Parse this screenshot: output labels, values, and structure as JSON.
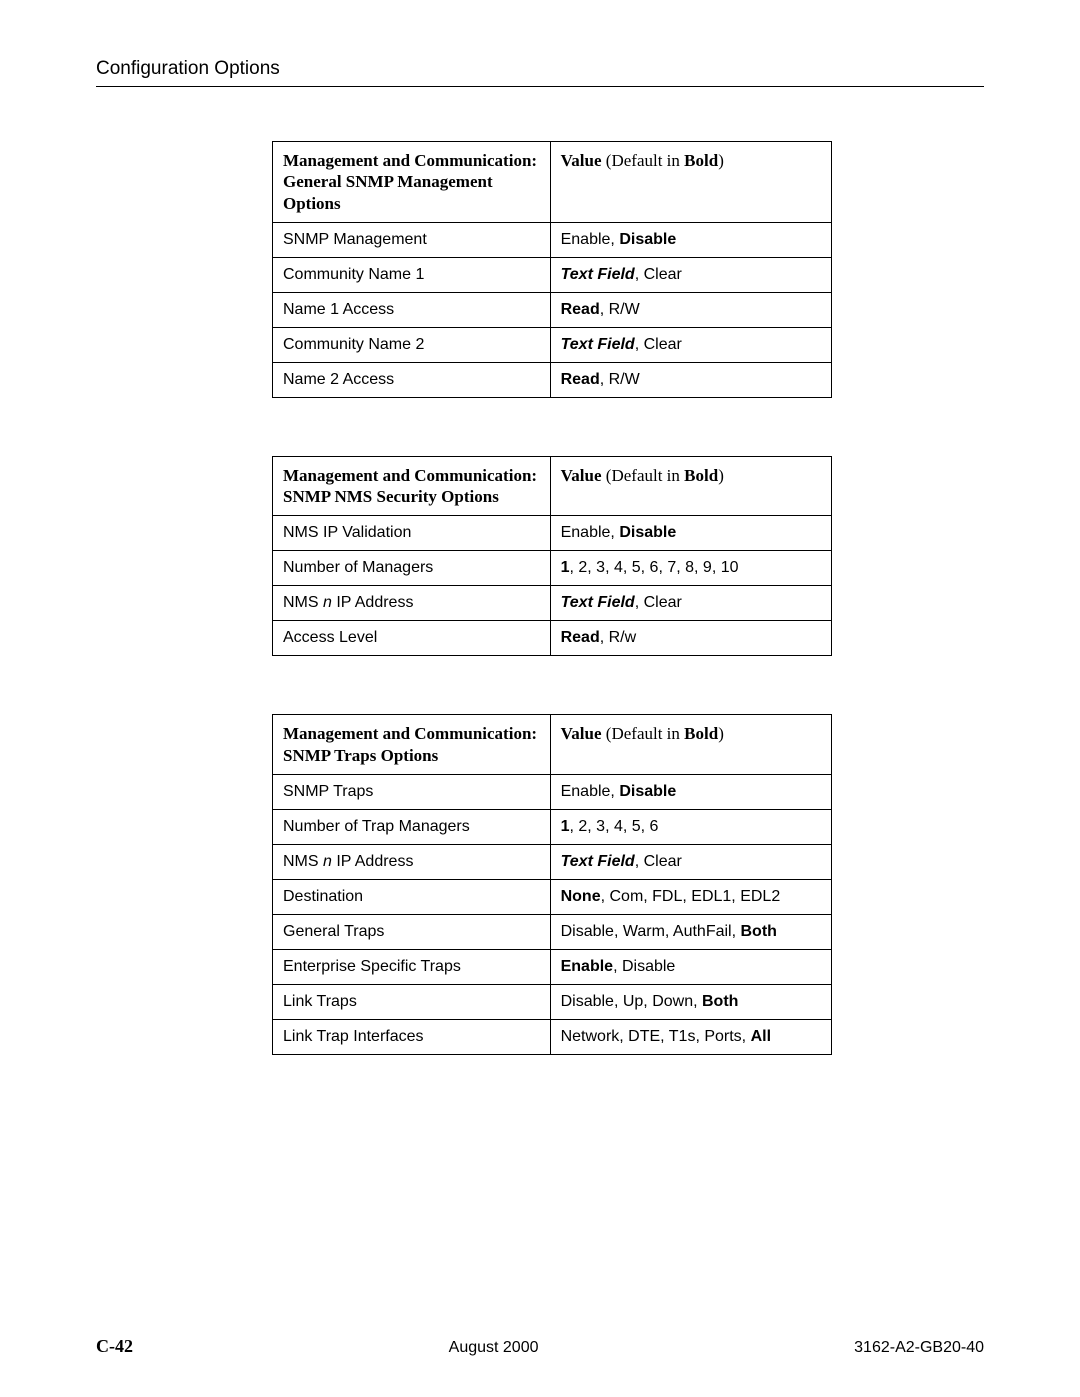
{
  "page": {
    "section_title": "Configuration Options",
    "page_number": "C-42",
    "date": "August 2000",
    "doc_id": "3162-A2-GB20-40"
  },
  "tables": {
    "t1": {
      "col1_header_line1": "Management and Communication:",
      "col1_header_line2": "General SNMP Management Options",
      "col2_header_prefix": "Value",
      "col2_header_paren_pre": " (Default in ",
      "col2_header_bold": "Bold",
      "col2_header_paren_post": ")",
      "rows": [
        {
          "name": "SNMP Management",
          "val_pre": "Enable, ",
          "val_bold": "Disable",
          "val_post": ""
        },
        {
          "name": "Community Name 1",
          "val_bi": "Text Field",
          "val_post": ", Clear"
        },
        {
          "name": "Name 1 Access",
          "val_bold": "Read",
          "val_post": ", R/W"
        },
        {
          "name": "Community Name 2",
          "val_bi": "Text Field",
          "val_post": ", Clear"
        },
        {
          "name": "Name 2 Access",
          "val_bold": "Read",
          "val_post": ", R/W"
        }
      ]
    },
    "t2": {
      "col1_header_line1": "Management and Communication:",
      "col1_header_line2": "SNMP NMS Security Options",
      "col2_header_prefix": "Value",
      "col2_header_paren_pre": " (Default in ",
      "col2_header_bold": "Bold",
      "col2_header_paren_post": ")",
      "rows": [
        {
          "name": "NMS IP Validation",
          "val_pre": "Enable, ",
          "val_bold": "Disable",
          "val_post": ""
        },
        {
          "name": "Number of Managers",
          "val_bold": "1",
          "val_post": ", 2, 3, 4, 5, 6, 7, 8, 9, 10"
        },
        {
          "name_pre": "NMS ",
          "name_i": "n",
          "name_post": " IP Address",
          "val_bi": "Text Field",
          "val_post": ", Clear"
        },
        {
          "name": "Access Level",
          "val_bold": "Read",
          "val_post": ", R/w"
        }
      ]
    },
    "t3": {
      "col1_header_line1": "Management and Communication:",
      "col1_header_line2": "SNMP Traps Options",
      "col2_header_prefix": "Value",
      "col2_header_paren_pre": " (Default in ",
      "col2_header_bold": "Bold",
      "col2_header_paren_post": ")",
      "rows": [
        {
          "name": "SNMP Traps",
          "val_pre": "Enable, ",
          "val_bold": "Disable",
          "val_post": ""
        },
        {
          "name": "Number of Trap Managers",
          "val_bold": "1",
          "val_post": ", 2, 3, 4, 5, 6"
        },
        {
          "name_pre": "NMS ",
          "name_i": "n",
          "name_post": " IP Address",
          "val_bi": "Text Field",
          "val_post": ", Clear"
        },
        {
          "name": "Destination",
          "val_bold": "None",
          "val_post": ", Com, FDL, EDL1, EDL2"
        },
        {
          "name": "General Traps",
          "val_pre": "Disable, Warm, AuthFail, ",
          "val_bold": "Both",
          "val_post": ""
        },
        {
          "name": "Enterprise Specific Traps",
          "val_bold": "Enable",
          "val_post": ", Disable"
        },
        {
          "name": "Link Traps",
          "val_pre": "Disable, Up, Down, ",
          "val_bold": "Both",
          "val_post": ""
        },
        {
          "name": "Link Trap Interfaces",
          "val_pre": "Network, DTE, T1s, Ports, ",
          "val_bold": "All",
          "val_post": ""
        }
      ]
    }
  }
}
